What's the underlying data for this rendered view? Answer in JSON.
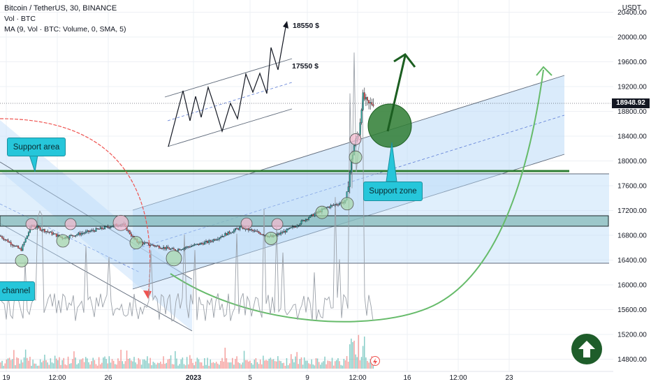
{
  "legend": {
    "symbol": "Bitcoin / TetherUS, 30, BINANCE",
    "volume": "Vol · BTC",
    "ma": "MA (9, Vol · BTC: Volume, 0, SMA, 5)"
  },
  "axis_unit": "USDT",
  "last_price": "18948.92",
  "annotations": {
    "label_18550": "18550 $",
    "label_17550": "17550 $",
    "support_area": "Support area",
    "support_zone": "Support zone",
    "channel": "channel"
  },
  "colors": {
    "up": "#26a69a",
    "down": "#ef5350",
    "support_line": "#2e7d32",
    "zone_fill": "#bbdefb",
    "callout": "#26c6da",
    "arrow_green": "#66bb6a",
    "arrow_red": "#ef5350"
  },
  "chart_data": {
    "type": "candlestick",
    "title": "Bitcoin / TetherUS, 30, BINANCE",
    "ylabel": "USDT",
    "ylim": [
      14600,
      20500
    ],
    "y_ticks": [
      14800,
      15200,
      15600,
      16000,
      16400,
      16800,
      17200,
      17600,
      18000,
      18400,
      18800,
      19200,
      19600,
      20000,
      20400
    ],
    "x_ticks": [
      "19",
      "12:00",
      "26",
      "2023",
      "5",
      "9",
      "12:00",
      "16",
      "12:00",
      "23"
    ],
    "price_path": [
      {
        "t": "19",
        "price": 16780
      },
      {
        "t": "12:00",
        "price": 16820
      },
      {
        "t": "26",
        "price": 16890
      },
      {
        "t": "2023",
        "price": 16560
      },
      {
        "t": "5",
        "price": 16860
      },
      {
        "t": "9",
        "price": 17200
      },
      {
        "t": "12:00",
        "price": 18948.92
      }
    ],
    "last_price": 18948.92,
    "levels": [
      {
        "name": "Support area",
        "price": 17850
      },
      {
        "name": "Support zone",
        "price": 17080
      }
    ],
    "series": [
      {
        "name": "Vol · BTC"
      },
      {
        "name": "MA (9, Vol · BTC: Volume, 0, SMA, 5)"
      }
    ]
  }
}
